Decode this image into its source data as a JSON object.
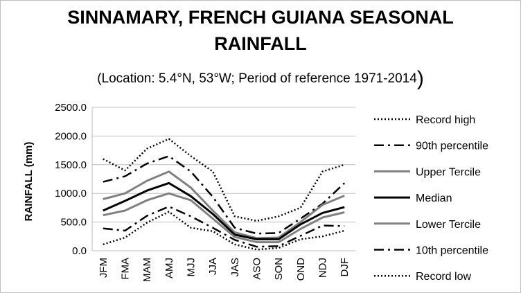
{
  "chart_data": {
    "type": "line",
    "title_lines": [
      "SINNAMARY, FRENCH GUIANA SEASONAL",
      "RAINFALL"
    ],
    "subtitle": "(Location: 5.4°N, 53°W; Period of reference 1971-2014",
    "subtitle_close": ")",
    "ylabel": "RAINFALL (mm)",
    "xlabel": "",
    "ylim": [
      0,
      2500
    ],
    "yticks": [
      "2500.0",
      "2000.0",
      "1500.0",
      "1000.0",
      "500.0",
      "0.0"
    ],
    "ytick_values": [
      2500,
      2000,
      1500,
      1000,
      500,
      0
    ],
    "categories": [
      "JFM",
      "FMA",
      "MAM",
      "AMJ",
      "MJJ",
      "JJA",
      "JAS",
      "ASO",
      "SON",
      "OND",
      "NDJ",
      "DJF"
    ],
    "grid": true,
    "legend_position": "right",
    "series": [
      {
        "name": "Record high",
        "color": "#000000",
        "style": "dotted",
        "values": [
          1600,
          1400,
          1780,
          1950,
          1650,
          1380,
          600,
          520,
          600,
          750,
          1380,
          1500
        ]
      },
      {
        "name": "90th percentile",
        "color": "#000000",
        "style": "dashdot",
        "values": [
          1200,
          1300,
          1520,
          1650,
          1380,
          940,
          400,
          300,
          310,
          560,
          820,
          1180
        ]
      },
      {
        "name": "Upper Tercile",
        "color": "#808080",
        "style": "solid",
        "values": [
          900,
          1000,
          1220,
          1380,
          1100,
          700,
          320,
          220,
          230,
          500,
          800,
          960
        ]
      },
      {
        "name": "Median",
        "color": "#000000",
        "style": "solid",
        "values": [
          700,
          870,
          1050,
          1180,
          950,
          640,
          280,
          200,
          200,
          460,
          660,
          760
        ]
      },
      {
        "name": "Lower Tercile",
        "color": "#808080",
        "style": "solid",
        "values": [
          620,
          700,
          880,
          1000,
          880,
          560,
          240,
          150,
          150,
          380,
          580,
          670
        ]
      },
      {
        "name": "10th percentile",
        "color": "#000000",
        "style": "dashdot",
        "values": [
          390,
          350,
          610,
          770,
          600,
          400,
          190,
          70,
          80,
          260,
          440,
          430
        ]
      },
      {
        "name": "Record low",
        "color": "#000000",
        "style": "dotted",
        "values": [
          110,
          230,
          490,
          680,
          400,
          340,
          110,
          20,
          50,
          200,
          250,
          350
        ]
      }
    ]
  }
}
